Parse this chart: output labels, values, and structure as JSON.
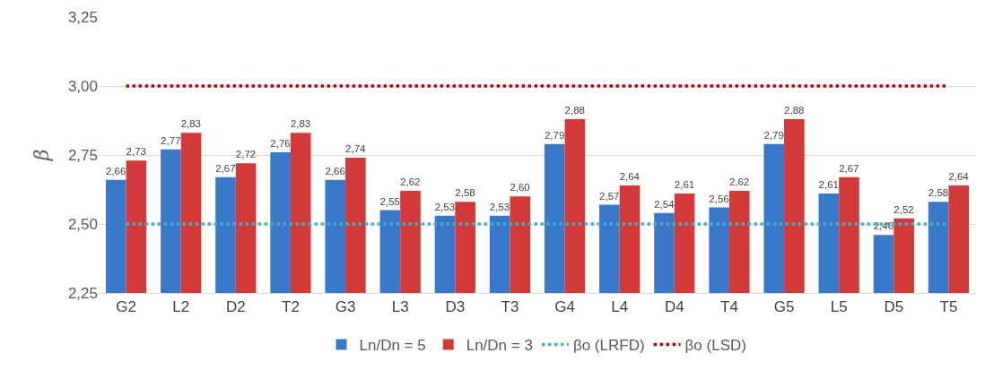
{
  "chart_data": {
    "type": "bar",
    "ylabel": "β",
    "categories": [
      "G2",
      "L2",
      "D2",
      "T2",
      "G3",
      "L3",
      "D3",
      "T3",
      "G4",
      "L4",
      "D4",
      "T4",
      "G5",
      "L5",
      "D5",
      "T5"
    ],
    "series": [
      {
        "name": "Ln/Dn = 5",
        "color": "#3a78c9",
        "values": [
          2.66,
          2.77,
          2.67,
          2.76,
          2.66,
          2.55,
          2.53,
          2.53,
          2.79,
          2.57,
          2.54,
          2.56,
          2.79,
          2.61,
          2.46,
          2.58
        ],
        "value_labels": [
          "2,66",
          "2,77",
          "2,67",
          "2,76",
          "2,66",
          "2,55",
          "2,53",
          "2,53",
          "2,79",
          "2,57",
          "2,54",
          "2,56",
          "2,79",
          "2,61",
          "2,46",
          "2,58"
        ]
      },
      {
        "name": "Ln/Dn = 3",
        "color": "#d23a3a",
        "values": [
          2.73,
          2.83,
          2.72,
          2.83,
          2.74,
          2.62,
          2.58,
          2.6,
          2.88,
          2.64,
          2.61,
          2.62,
          2.88,
          2.67,
          2.52,
          2.64
        ],
        "value_labels": [
          "2,73",
          "2,83",
          "2,72",
          "2,83",
          "2,74",
          "2,62",
          "2,58",
          "2,60",
          "2,88",
          "2,64",
          "2,61",
          "2,62",
          "2,88",
          "2,67",
          "2,52",
          "2,64"
        ]
      }
    ],
    "ref_lines": [
      {
        "axis": "y",
        "value": 2.5,
        "label": "βo (LRFD)",
        "color": "#4bacc6",
        "line_style": "dotted"
      },
      {
        "axis": "y",
        "value": 3.0,
        "label": "βo (LSD)",
        "color": "#c00000",
        "line_style": "dotted"
      }
    ],
    "ylim": [
      2.25,
      3.25
    ],
    "yticks": [
      {
        "value": 2.25,
        "label": "2,25"
      },
      {
        "value": 2.5,
        "label": "2,50"
      },
      {
        "value": 2.75,
        "label": "2,75"
      },
      {
        "value": 3.0,
        "label": "3,00"
      },
      {
        "value": 3.25,
        "label": "3,25"
      }
    ],
    "grid": "y",
    "legend": "bottom"
  }
}
